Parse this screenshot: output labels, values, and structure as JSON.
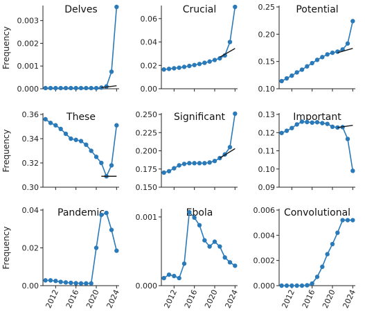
{
  "figure": {
    "ylabel": "Frequency"
  },
  "chart_data": [
    {
      "type": "line",
      "title": "Delves",
      "ylabel": "Frequency",
      "xticks": [
        2012,
        2016,
        2020,
        2024
      ],
      "ylim": [
        0,
        0.0036
      ],
      "yticks": [
        0.0,
        0.001,
        0.002,
        0.003
      ],
      "ytick_labels": [
        "0.000",
        "0.001",
        "0.002",
        "0.003"
      ],
      "x": [
        2010,
        2011,
        2012,
        2013,
        2014,
        2015,
        2016,
        2017,
        2018,
        2019,
        2020,
        2021,
        2022,
        2023,
        2024
      ],
      "series": [
        {
          "values": [
            3e-05,
            3e-05,
            3e-05,
            3e-05,
            3e-05,
            3e-05,
            3e-05,
            3e-05,
            3e-05,
            3e-05,
            3e-05,
            5e-05,
            0.0001,
            0.00075,
            0.0036
          ]
        }
      ],
      "trend": {
        "x": [
          2021,
          2024
        ],
        "y": [
          5e-05,
          0.00013
        ]
      }
    },
    {
      "type": "line",
      "title": "Crucial",
      "xticks": [
        2012,
        2016,
        2020,
        2024
      ],
      "ylim": [
        0,
        0.07
      ],
      "yticks": [
        0.0,
        0.02,
        0.04,
        0.06
      ],
      "ytick_labels": [
        "0.00",
        "0.02",
        "0.04",
        "0.06"
      ],
      "x": [
        2010,
        2011,
        2012,
        2013,
        2014,
        2015,
        2016,
        2017,
        2018,
        2019,
        2020,
        2021,
        2022,
        2023,
        2024
      ],
      "series": [
        {
          "values": [
            0.0165,
            0.017,
            0.0175,
            0.018,
            0.0187,
            0.0195,
            0.0203,
            0.0212,
            0.0222,
            0.0233,
            0.0246,
            0.026,
            0.0285,
            0.04,
            0.07
          ]
        }
      ],
      "trend": {
        "x": [
          2021,
          2024
        ],
        "y": [
          0.027,
          0.0345
        ]
      }
    },
    {
      "type": "line",
      "title": "Potential",
      "xticks": [
        2012,
        2016,
        2020,
        2024
      ],
      "ylim": [
        0.1,
        0.25
      ],
      "yticks": [
        0.1,
        0.15,
        0.2,
        0.25
      ],
      "ytick_labels": [
        "0.10",
        "0.15",
        "0.20",
        "0.25"
      ],
      "x": [
        2010,
        2011,
        2012,
        2013,
        2014,
        2015,
        2016,
        2017,
        2018,
        2019,
        2020,
        2021,
        2022,
        2023,
        2024
      ],
      "series": [
        {
          "values": [
            0.114,
            0.119,
            0.124,
            0.13,
            0.135,
            0.141,
            0.147,
            0.153,
            0.158,
            0.163,
            0.166,
            0.168,
            0.172,
            0.183,
            0.224
          ]
        }
      ],
      "trend": {
        "x": [
          2021,
          2024
        ],
        "y": [
          0.166,
          0.174
        ]
      }
    },
    {
      "type": "line",
      "title": "These",
      "ylabel": "Frequency",
      "xticks": [
        2012,
        2016,
        2020,
        2024
      ],
      "ylim": [
        0.3,
        0.36
      ],
      "yticks": [
        0.3,
        0.32,
        0.34,
        0.36
      ],
      "ytick_labels": [
        "0.30",
        "0.32",
        "0.34",
        "0.36"
      ],
      "x": [
        2010,
        2011,
        2012,
        2013,
        2014,
        2015,
        2016,
        2017,
        2018,
        2019,
        2020,
        2021,
        2022,
        2023,
        2024
      ],
      "series": [
        {
          "values": [
            0.356,
            0.353,
            0.351,
            0.348,
            0.344,
            0.34,
            0.339,
            0.338,
            0.335,
            0.33,
            0.325,
            0.32,
            0.309,
            0.318,
            0.351
          ]
        }
      ],
      "trend": {
        "x": [
          2021,
          2024
        ],
        "y": [
          0.309,
          0.309
        ]
      }
    },
    {
      "type": "line",
      "title": "Significant",
      "xticks": [
        2012,
        2016,
        2020,
        2024
      ],
      "ylim": [
        0.15,
        0.25
      ],
      "yticks": [
        0.15,
        0.175,
        0.2,
        0.225,
        0.25
      ],
      "ytick_labels": [
        "0.150",
        "0.175",
        "0.200",
        "0.225",
        "0.250"
      ],
      "x": [
        2010,
        2011,
        2012,
        2013,
        2014,
        2015,
        2016,
        2017,
        2018,
        2019,
        2020,
        2021,
        2022,
        2023,
        2024
      ],
      "series": [
        {
          "values": [
            0.17,
            0.172,
            0.176,
            0.18,
            0.182,
            0.183,
            0.183,
            0.183,
            0.183,
            0.184,
            0.186,
            0.19,
            0.195,
            0.205,
            0.251
          ]
        }
      ],
      "trend": {
        "x": [
          2021,
          2024
        ],
        "y": [
          0.19,
          0.203
        ]
      }
    },
    {
      "type": "line",
      "title": "Important",
      "xticks": [
        2012,
        2016,
        2020,
        2024
      ],
      "ylim": [
        0.09,
        0.13
      ],
      "yticks": [
        0.09,
        0.1,
        0.11,
        0.12,
        0.13
      ],
      "ytick_labels": [
        "0.09",
        "0.10",
        "0.11",
        "0.12",
        "0.13"
      ],
      "x": [
        2010,
        2011,
        2012,
        2013,
        2014,
        2015,
        2016,
        2017,
        2018,
        2019,
        2020,
        2021,
        2022,
        2023,
        2024
      ],
      "series": [
        {
          "values": [
            0.1198,
            0.121,
            0.1225,
            0.1245,
            0.126,
            0.1258,
            0.1255,
            0.1257,
            0.1252,
            0.1248,
            0.1232,
            0.1228,
            0.123,
            0.1165,
            0.099
          ]
        }
      ],
      "trend": {
        "x": [
          2021,
          2024
        ],
        "y": [
          0.1228,
          0.124
        ]
      }
    },
    {
      "type": "line",
      "title": "Pandemic",
      "ylabel": "Frequency",
      "xticks": [
        2012,
        2016,
        2020,
        2024
      ],
      "ylim": [
        0,
        0.04
      ],
      "yticks": [
        0.0,
        0.02,
        0.04
      ],
      "ytick_labels": [
        "0.00",
        "0.02",
        "0.04"
      ],
      "x": [
        2010,
        2011,
        2012,
        2013,
        2014,
        2015,
        2016,
        2017,
        2018,
        2019,
        2020,
        2021,
        2022,
        2023,
        2024
      ],
      "series": [
        {
          "values": [
            0.0028,
            0.0028,
            0.0025,
            0.002,
            0.0017,
            0.0015,
            0.0013,
            0.0012,
            0.0012,
            0.0012,
            0.02,
            0.0375,
            0.0385,
            0.0295,
            0.0185
          ]
        }
      ]
    },
    {
      "type": "line",
      "title": "Ebola",
      "xticks": [
        2012,
        2016,
        2020,
        2024
      ],
      "ylim": [
        0,
        0.0011
      ],
      "yticks": [
        0.0,
        0.001
      ],
      "ytick_labels": [
        "0.000",
        "0.001"
      ],
      "x": [
        2010,
        2011,
        2012,
        2013,
        2014,
        2015,
        2016,
        2017,
        2018,
        2019,
        2020,
        2021,
        2022,
        2023,
        2024
      ],
      "series": [
        {
          "values": [
            0.00011,
            0.00016,
            0.00014,
            0.00011,
            0.00032,
            0.00107,
            0.00099,
            0.00088,
            0.00066,
            0.00057,
            0.00064,
            0.00057,
            0.00041,
            0.00034,
            0.00029
          ]
        }
      ]
    },
    {
      "type": "line",
      "title": "Convolutional",
      "xticks": [
        2012,
        2016,
        2020,
        2024
      ],
      "ylim": [
        0,
        0.006
      ],
      "yticks": [
        0.0,
        0.002,
        0.004,
        0.006
      ],
      "ytick_labels": [
        "0.000",
        "0.002",
        "0.004",
        "0.006"
      ],
      "x": [
        2010,
        2011,
        2012,
        2013,
        2014,
        2015,
        2016,
        2017,
        2018,
        2019,
        2020,
        2021,
        2022,
        2023,
        2024
      ],
      "series": [
        {
          "values": [
            0.0,
            0.0,
            0.0,
            0.0,
            0.0,
            3e-05,
            0.00017,
            0.0007,
            0.0015,
            0.0025,
            0.0033,
            0.0042,
            0.0052,
            0.0052,
            0.0052
          ]
        }
      ]
    }
  ],
  "colors": {
    "series": "#2a7ab9",
    "trend": "#1a1a1a",
    "axis": "#222222"
  }
}
